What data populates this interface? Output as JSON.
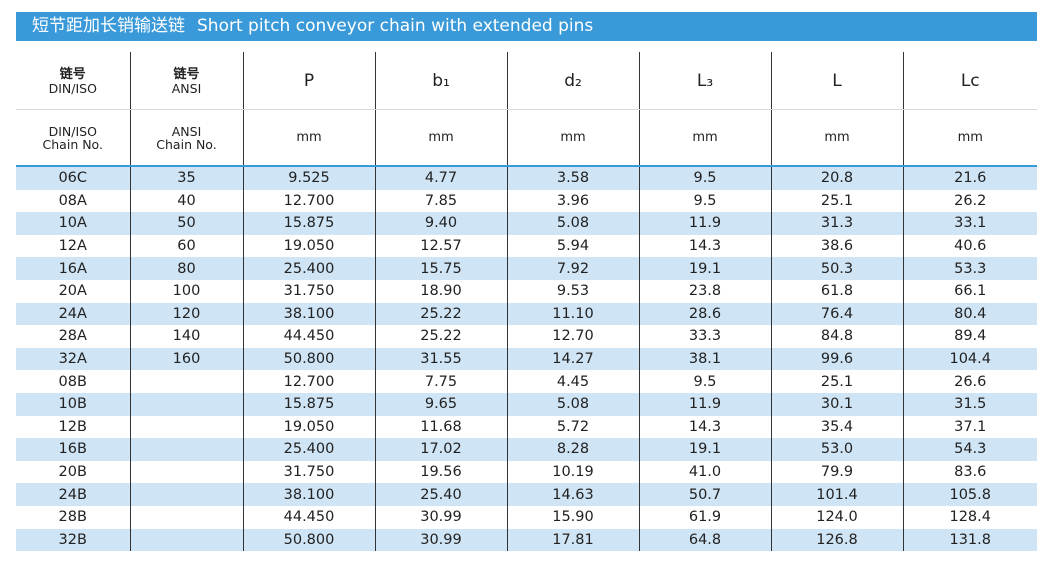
{
  "title": {
    "cn": "短节距加长销输送链",
    "en": "Short pitch conveyor chain with extended pins"
  },
  "header": {
    "col1_cn": "链号",
    "col1_en": "DIN/ISO",
    "col2_cn": "链号",
    "col2_en": "ANSI",
    "col3": "P",
    "col4": "b₁",
    "col5": "d₂",
    "col6": "L₃",
    "col7": "L",
    "col8": "Lc",
    "sub1_a": "DIN/ISO",
    "sub1_b": "Chain No.",
    "sub2_a": "ANSI",
    "sub2_b": "Chain No.",
    "unit": "mm"
  },
  "rows": [
    [
      "06C",
      "35",
      "9.525",
      "4.77",
      "3.58",
      "9.5",
      "20.8",
      "21.6"
    ],
    [
      "08A",
      "40",
      "12.700",
      "7.85",
      "3.96",
      "9.5",
      "25.1",
      "26.2"
    ],
    [
      "10A",
      "50",
      "15.875",
      "9.40",
      "5.08",
      "11.9",
      "31.3",
      "33.1"
    ],
    [
      "12A",
      "60",
      "19.050",
      "12.57",
      "5.94",
      "14.3",
      "38.6",
      "40.6"
    ],
    [
      "16A",
      "80",
      "25.400",
      "15.75",
      "7.92",
      "19.1",
      "50.3",
      "53.3"
    ],
    [
      "20A",
      "100",
      "31.750",
      "18.90",
      "9.53",
      "23.8",
      "61.8",
      "66.1"
    ],
    [
      "24A",
      "120",
      "38.100",
      "25.22",
      "11.10",
      "28.6",
      "76.4",
      "80.4"
    ],
    [
      "28A",
      "140",
      "44.450",
      "25.22",
      "12.70",
      "33.3",
      "84.8",
      "89.4"
    ],
    [
      "32A",
      "160",
      "50.800",
      "31.55",
      "14.27",
      "38.1",
      "99.6",
      "104.4"
    ],
    [
      "08B",
      "",
      "12.700",
      "7.75",
      "4.45",
      "9.5",
      "25.1",
      "26.6"
    ],
    [
      "10B",
      "",
      "15.875",
      "9.65",
      "5.08",
      "11.9",
      "30.1",
      "31.5"
    ],
    [
      "12B",
      "",
      "19.050",
      "11.68",
      "5.72",
      "14.3",
      "35.4",
      "37.1"
    ],
    [
      "16B",
      "",
      "25.400",
      "17.02",
      "8.28",
      "19.1",
      "53.0",
      "54.3"
    ],
    [
      "20B",
      "",
      "31.750",
      "19.56",
      "10.19",
      "41.0",
      "79.9",
      "83.6"
    ],
    [
      "24B",
      "",
      "38.100",
      "25.40",
      "14.63",
      "50.7",
      "101.4",
      "105.8"
    ],
    [
      "28B",
      "",
      "44.450",
      "30.99",
      "15.90",
      "61.9",
      "124.0",
      "128.4"
    ],
    [
      "32B",
      "",
      "50.800",
      "30.99",
      "17.81",
      "64.8",
      "126.8",
      "131.8"
    ]
  ]
}
